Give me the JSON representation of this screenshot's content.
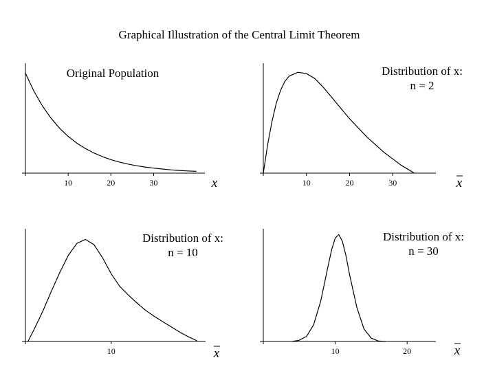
{
  "title": "Graphical Illustration of the Central Limit Theorem",
  "chart_data": [
    {
      "type": "line",
      "name": "original-population",
      "title_lines": [
        "Original Population"
      ],
      "xlabel": "x",
      "xlabel_bar": false,
      "xlim": [
        0,
        42
      ],
      "ylim": [
        0,
        0.11
      ],
      "xticks": [
        10,
        20,
        30
      ],
      "grid": false,
      "series": [
        {
          "x": [
            0,
            2,
            4,
            6,
            8,
            10,
            12,
            14,
            16,
            18,
            20,
            22,
            24,
            26,
            28,
            30,
            32,
            34,
            36,
            38,
            40
          ],
          "values": [
            0.1,
            0.0819,
            0.067,
            0.0549,
            0.0449,
            0.0368,
            0.0301,
            0.0247,
            0.0202,
            0.0165,
            0.0135,
            0.0111,
            0.0091,
            0.0074,
            0.0061,
            0.005,
            0.0041,
            0.0033,
            0.0027,
            0.0022,
            0.0018
          ]
        }
      ]
    },
    {
      "type": "line",
      "name": "distribution-n2",
      "title_lines": [
        "Distribution of x:",
        "n = 2"
      ],
      "xlabel": "x",
      "xlabel_bar": true,
      "xlim": [
        0,
        40
      ],
      "ylim": [
        0,
        0.085
      ],
      "xticks": [
        10,
        20,
        30
      ],
      "grid": false,
      "series": [
        {
          "x": [
            0,
            1,
            2,
            3,
            4,
            5,
            6,
            8,
            10,
            12,
            14,
            16,
            18,
            20,
            22,
            24,
            26,
            28,
            30,
            32,
            34,
            35
          ],
          "values": [
            0,
            0.022,
            0.04,
            0.054,
            0.064,
            0.071,
            0.075,
            0.078,
            0.077,
            0.073,
            0.066,
            0.058,
            0.05,
            0.042,
            0.035,
            0.028,
            0.022,
            0.016,
            0.011,
            0.006,
            0.002,
            0
          ]
        }
      ]
    },
    {
      "type": "line",
      "name": "distribution-n10",
      "title_lines": [
        "Distribution of x:",
        "n = 10"
      ],
      "xlabel": "x",
      "xlabel_bar": true,
      "xlim": [
        0,
        21
      ],
      "ylim": [
        0,
        0.17
      ],
      "xticks": [
        10
      ],
      "grid": false,
      "series": [
        {
          "x": [
            0.3,
            1,
            2,
            3,
            4,
            5,
            6,
            7,
            8,
            9,
            10,
            11,
            12,
            13,
            14,
            15,
            16,
            17,
            18,
            19,
            20
          ],
          "values": [
            0,
            0.018,
            0.045,
            0.075,
            0.104,
            0.13,
            0.148,
            0.154,
            0.146,
            0.126,
            0.102,
            0.083,
            0.07,
            0.058,
            0.047,
            0.038,
            0.03,
            0.022,
            0.014,
            0.007,
            0.001
          ]
        }
      ]
    },
    {
      "type": "line",
      "name": "distribution-n30",
      "title_lines": [
        "Distribution of x:",
        "n = 30"
      ],
      "xlabel": "x",
      "xlabel_bar": true,
      "xlim": [
        0,
        24
      ],
      "ylim": [
        0,
        0.27
      ],
      "xticks": [
        10,
        20
      ],
      "grid": false,
      "series": [
        {
          "x": [
            4,
            5,
            6,
            7,
            8,
            9,
            9.5,
            10,
            10.5,
            11,
            11.5,
            12,
            13,
            14,
            15,
            16,
            17
          ],
          "values": [
            0,
            0.003,
            0.012,
            0.04,
            0.098,
            0.18,
            0.22,
            0.248,
            0.256,
            0.24,
            0.205,
            0.16,
            0.082,
            0.03,
            0.008,
            0.001,
            0
          ]
        }
      ]
    }
  ]
}
